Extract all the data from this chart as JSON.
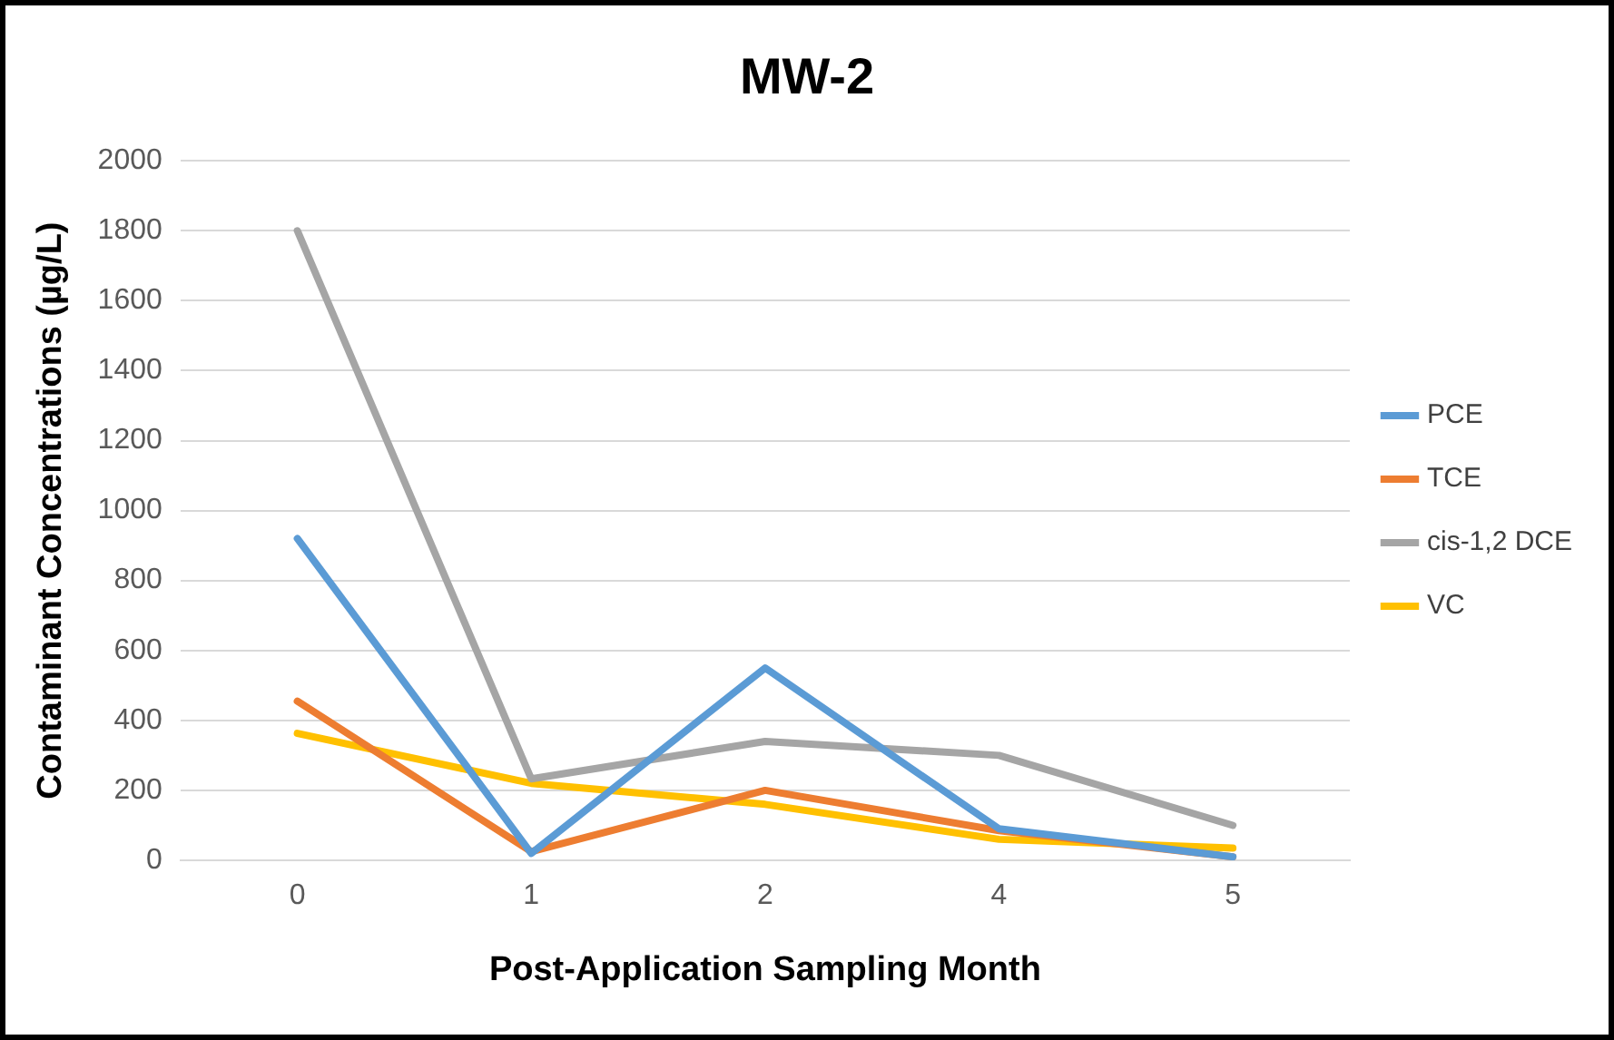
{
  "chart_data": {
    "type": "line",
    "title": "MW-2",
    "xlabel": "Post-Application Sampling Month",
    "ylabel": "Contaminant Concentrations (µg/L)",
    "categories": [
      "0",
      "1",
      "2",
      "4",
      "5"
    ],
    "series": [
      {
        "name": "PCE",
        "color": "#5b9bd5",
        "values": [
          920,
          20,
          550,
          90,
          10
        ]
      },
      {
        "name": "TCE",
        "color": "#ed7d31",
        "values": [
          455,
          25,
          200,
          85,
          10
        ]
      },
      {
        "name": "cis-1,2 DCE",
        "color": "#a5a5a5",
        "values": [
          1800,
          233,
          340,
          300,
          100
        ]
      },
      {
        "name": "VC",
        "color": "#ffc000",
        "values": [
          363,
          220,
          160,
          60,
          35
        ]
      }
    ],
    "ylim": [
      0,
      2000
    ],
    "yticks": [
      0,
      200,
      400,
      600,
      800,
      1000,
      1200,
      1400,
      1600,
      1800,
      2000
    ],
    "grid": "y",
    "legend": "right",
    "marker": "none",
    "line_style": "solid"
  }
}
